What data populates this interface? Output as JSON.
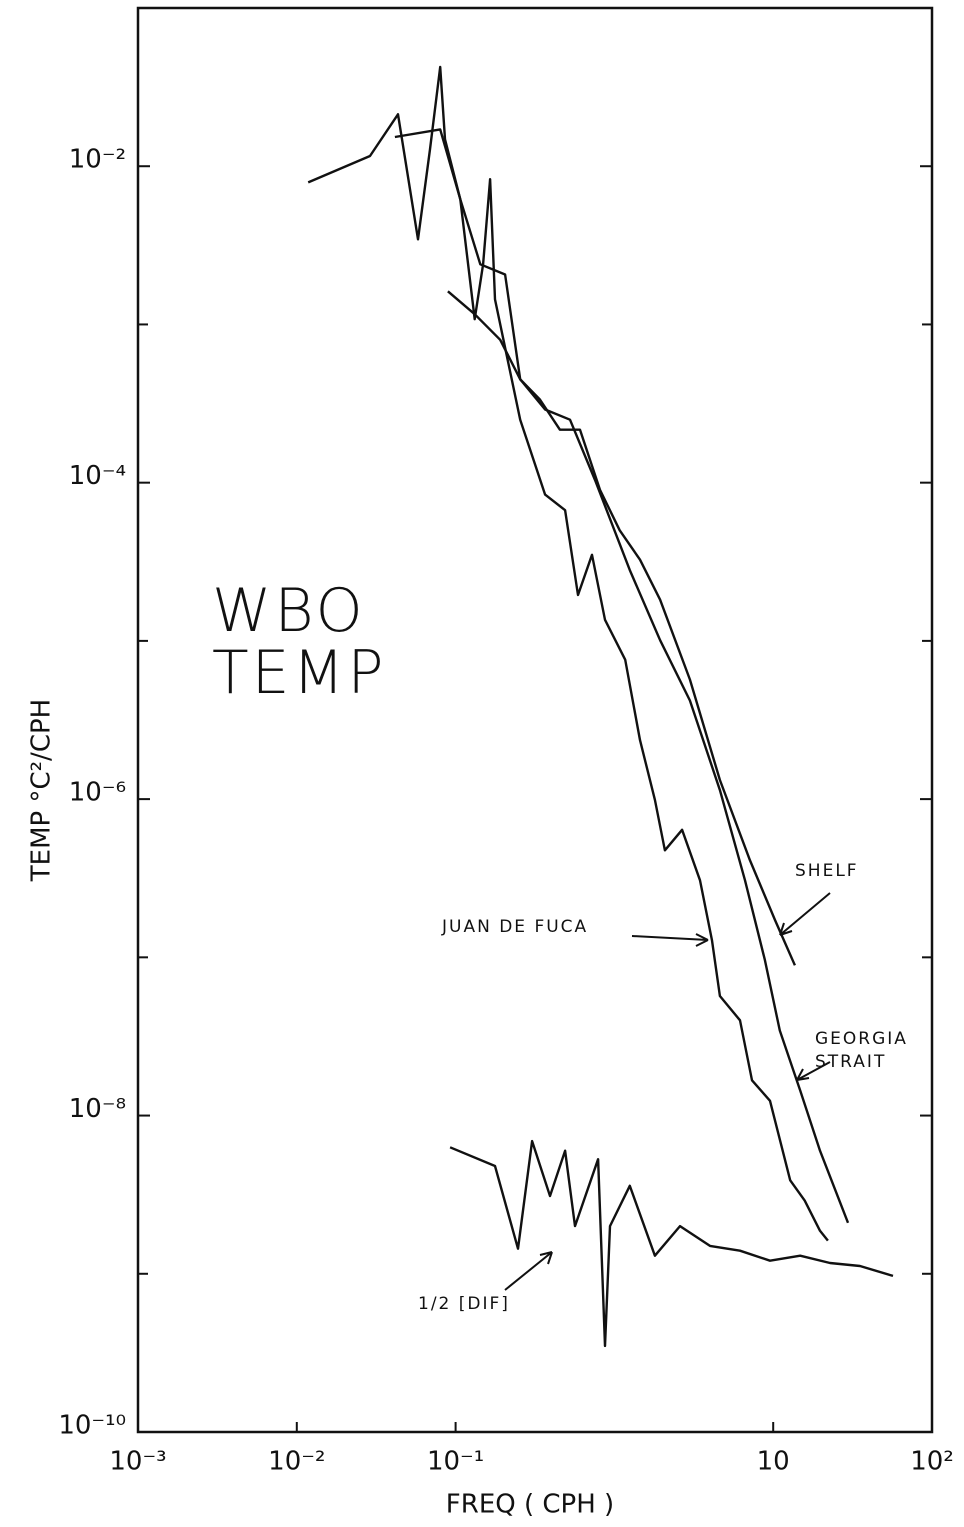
{
  "chart_data": {
    "type": "line",
    "title": "WBO TEMP",
    "x_label": "FREQ ( CPH )",
    "y_label": "TEMP  °C²/CPH",
    "log_x": true,
    "log_y": true,
    "xlim": [
      0.001,
      100
    ],
    "ylim": [
      1e-10,
      0.1
    ],
    "xticks": [
      {
        "value": 0.001,
        "label": "10⁻³"
      },
      {
        "value": 0.01,
        "label": "10⁻²"
      },
      {
        "value": 0.1,
        "label": "10⁻¹"
      },
      10,
      {
        "value": 100,
        "label": "10²"
      }
    ],
    "yticks": [
      {
        "value": 1e-10,
        "label": "10⁻¹⁰"
      },
      {
        "value": 1e-08,
        "label": "10⁻⁸"
      },
      {
        "value": 1e-06,
        "label": "10⁻⁶"
      },
      {
        "value": 0.0001,
        "label": "10⁻⁴"
      },
      {
        "value": 0.01,
        "label": "10⁻²"
      }
    ],
    "series": [
      {
        "name": "SHELF",
        "color": "#111111",
        "x": [
          0.0415,
          0.08,
          0.107,
          0.143,
          0.205,
          0.255,
          0.34,
          0.454,
          0.607,
          0.811,
          1.08,
          1.45,
          1.94,
          2.99,
          4.62,
          7.14,
          10.3,
          13.7
        ],
        "values": [
          0.0153,
          0.0171,
          0.00618,
          0.0024,
          0.00207,
          0.00045,
          0.000335,
          0.000216,
          0.000216,
          9e-05,
          5e-05,
          3.26e-05,
          1.82e-05,
          5.7e-06,
          1.32e-06,
          4.1e-07,
          1.71e-07,
          8.9e-08
        ]
      },
      {
        "name": "JUAN DE FUCA",
        "color": "#111111",
        "x": [
          0.0118,
          0.0289,
          0.0434,
          0.058,
          0.069,
          0.08,
          0.0857,
          0.107,
          0.132,
          0.149,
          0.165,
          0.177,
          0.255,
          0.366,
          0.489,
          0.59,
          0.723,
          0.873,
          1.17,
          1.45,
          1.8,
          2.08,
          2.67,
          3.46,
          4.12,
          4.62,
          6.18,
          7.35,
          9.55,
          12.8,
          15.8,
          19.7,
          22.1
        ],
        "values": [
          0.0079,
          0.0116,
          0.0213,
          0.00345,
          0.0128,
          0.0424,
          0.0148,
          0.00618,
          0.00108,
          0.0024,
          0.00828,
          0.00144,
          0.00025,
          8.4e-05,
          6.7e-05,
          1.95e-05,
          3.5e-05,
          1.36e-05,
          7.6e-06,
          2.36e-06,
          9.9e-07,
          4.75e-07,
          6.4e-07,
          3.07e-07,
          1.28e-07,
          5.7e-08,
          4e-08,
          1.67e-08,
          1.24e-08,
          3.9e-09,
          2.9e-09,
          1.87e-09,
          1.62e-09
        ]
      },
      {
        "name": "GEORGIA STRAIT",
        "color": "#111111",
        "x": [
          0.0895,
          0.132,
          0.191,
          0.255,
          0.366,
          0.525,
          0.755,
          1.25,
          1.94,
          2.99,
          4.62,
          6.64,
          8.87,
          11.0,
          14.8,
          19.7,
          29.6
        ],
        "values": [
          0.00162,
          0.00116,
          0.0008,
          0.00045,
          0.00029,
          0.00025,
          0.000104,
          2.8e-05,
          1.01e-05,
          4.2e-06,
          1.14e-06,
          3.07e-07,
          9.6e-08,
          3.45e-08,
          1.44e-08,
          6e-09,
          2.1e-09
        ]
      },
      {
        "name": "1/2 [DIF]",
        "color": "#111111",
        "x": [
          0.0923,
          0.177,
          0.247,
          0.303,
          0.393,
          0.489,
          0.565,
          0.789,
          0.873,
          0.938,
          1.25,
          1.8,
          2.59,
          4.0,
          6.18,
          9.55,
          14.8,
          22.8,
          35.2,
          56.8
        ],
        "values": [
          6.3e-09,
          4.8e-09,
          1.44e-09,
          6.9e-09,
          3.1e-09,
          6e-09,
          2e-09,
          5.3e-09,
          3.5e-10,
          2e-09,
          3.6e-09,
          1.3e-09,
          2e-09,
          1.5e-09,
          1.4e-09,
          1.21e-09,
          1.3e-09,
          1.17e-09,
          1.12e-09,
          9.7e-10
        ]
      }
    ]
  }
}
